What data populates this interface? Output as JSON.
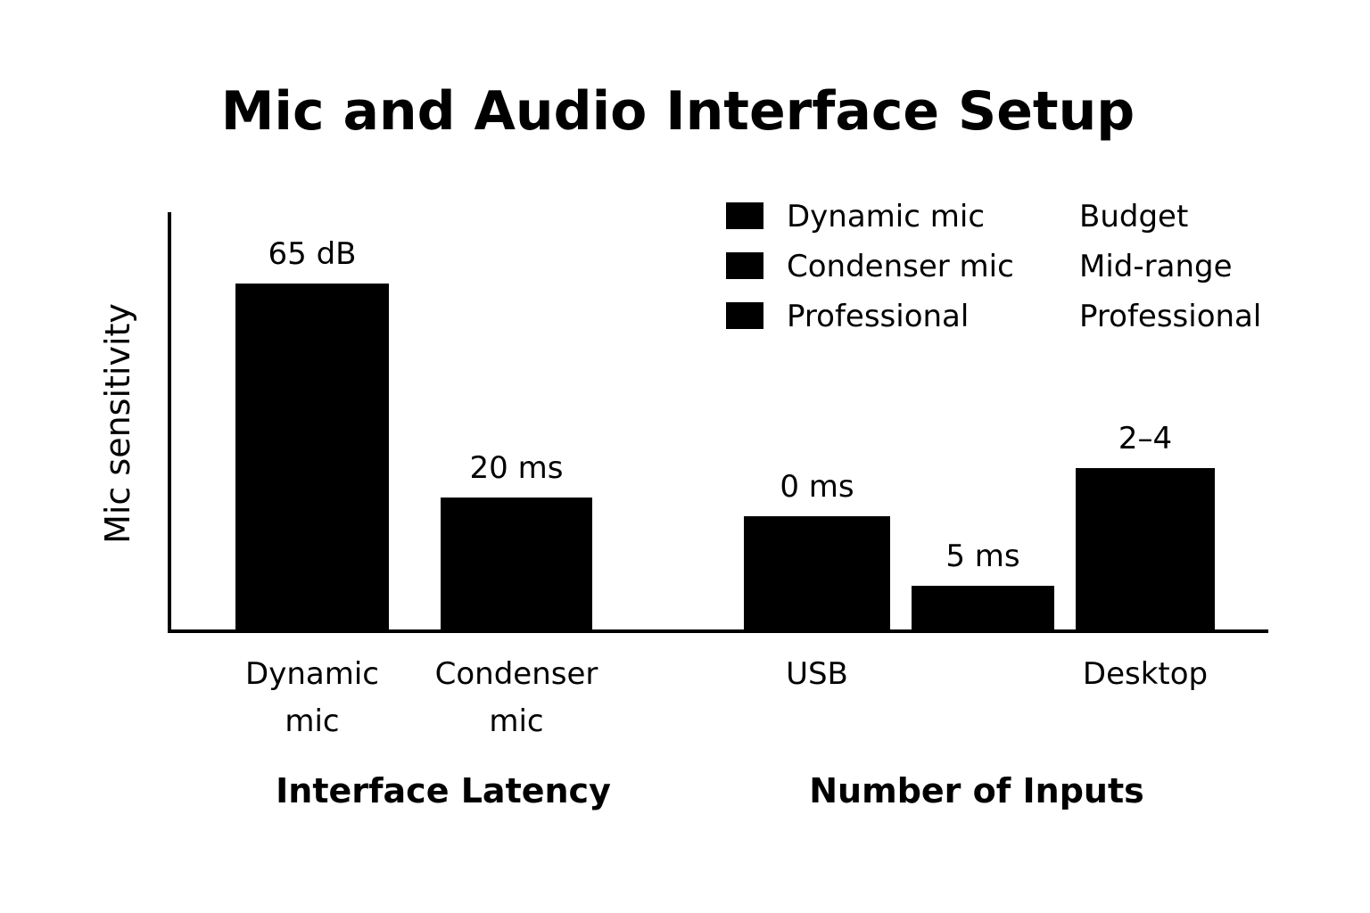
{
  "chart_data": {
    "type": "bar",
    "title": "Mic and Audio Interface Setup",
    "ylabel": "Mic sensitivity",
    "y_axis_ticks": "none",
    "grid": false,
    "legend_position": "top-right",
    "bar_color": "#000000",
    "bars": [
      {
        "category": "Dynamic mic",
        "value": 65,
        "label": "65 dB",
        "group": "Interface Latency"
      },
      {
        "category": "Condenser mic",
        "value": 25,
        "label": "20 ms",
        "group": "Interface Latency"
      },
      {
        "category": "USB",
        "value": 21.5,
        "label": "0 ms",
        "group": "Number of Inputs"
      },
      {
        "category": "",
        "value": 8.5,
        "label": "5 ms",
        "group": "Number of Inputs"
      },
      {
        "category": "Desktop",
        "value": 30.5,
        "label": "2–4",
        "group": "Number of Inputs"
      }
    ],
    "tick_labels": [
      {
        "lines": [
          "Dynamic",
          "mic"
        ]
      },
      {
        "lines": [
          "Condenser",
          "mic"
        ]
      },
      {
        "lines": [
          "USB"
        ]
      },
      {
        "lines": []
      },
      {
        "lines": [
          "Desktop"
        ]
      }
    ],
    "groups": [
      "Interface Latency",
      "Number of Inputs"
    ],
    "legend": {
      "entries": [
        "Dynamic mic",
        "Condenser mic",
        "Professional"
      ],
      "second_column": [
        "Budget",
        "Mid-range",
        "Professional"
      ]
    }
  }
}
